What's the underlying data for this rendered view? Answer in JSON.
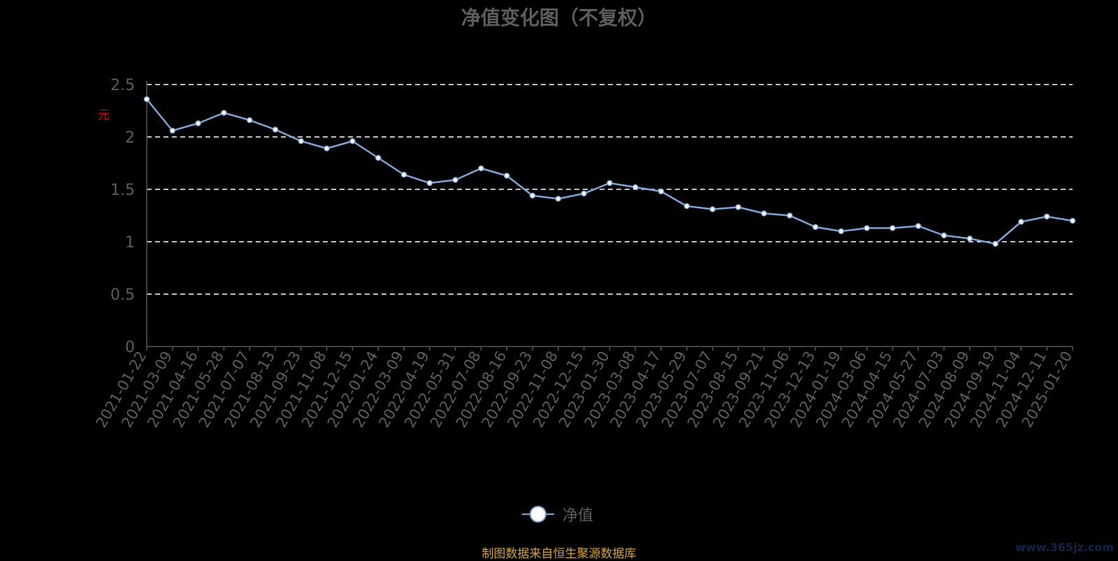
{
  "chart_data": {
    "type": "line",
    "title": "净值变化图（不复权）",
    "ylabel": "元",
    "xlabel": "",
    "ylim": [
      0,
      2.5
    ],
    "yticks": [
      "0",
      "0.5",
      "1",
      "1.5",
      "2",
      "2.5"
    ],
    "grid": "dashed horizontal",
    "legend_position": "bottom-center",
    "categories": [
      "2021-01-22",
      "2021-03-09",
      "2021-04-16",
      "2021-05-28",
      "2021-07-07",
      "2021-08-13",
      "2021-09-23",
      "2021-11-08",
      "2021-12-15",
      "2022-01-24",
      "2022-03-09",
      "2022-04-19",
      "2022-05-31",
      "2022-07-08",
      "2022-08-16",
      "2022-09-23",
      "2022-11-08",
      "2022-12-15",
      "2023-01-30",
      "2023-03-08",
      "2023-04-17",
      "2023-05-29",
      "2023-07-07",
      "2023-08-15",
      "2023-09-21",
      "2023-11-06",
      "2023-12-13",
      "2024-01-19",
      "2024-03-06",
      "2024-04-15",
      "2024-05-27",
      "2024-07-03",
      "2024-08-09",
      "2024-09-19",
      "2024-11-04",
      "2024-12-11",
      "2025-01-20"
    ],
    "series": [
      {
        "name": "净值",
        "color": "#7ea4d8",
        "values": [
          2.36,
          2.06,
          2.13,
          2.23,
          2.16,
          2.07,
          1.96,
          1.89,
          1.96,
          1.8,
          1.64,
          1.56,
          1.59,
          1.7,
          1.63,
          1.44,
          1.41,
          1.46,
          1.56,
          1.52,
          1.48,
          1.34,
          1.31,
          1.33,
          1.27,
          1.25,
          1.14,
          1.1,
          1.13,
          1.13,
          1.15,
          1.06,
          1.03,
          0.98,
          1.19,
          1.24,
          1.2
        ]
      }
    ]
  },
  "legend": {
    "label": "净值"
  },
  "source_text": "制图数据来自恒生聚源数据库",
  "watermark": "www.365jz.com",
  "colors": {
    "background": "#000000",
    "line": "#7ea4d8",
    "grid": "#ffffff",
    "axis_text": "#5d5d5d",
    "source": "#d6a23a",
    "unit": "#d20000"
  }
}
